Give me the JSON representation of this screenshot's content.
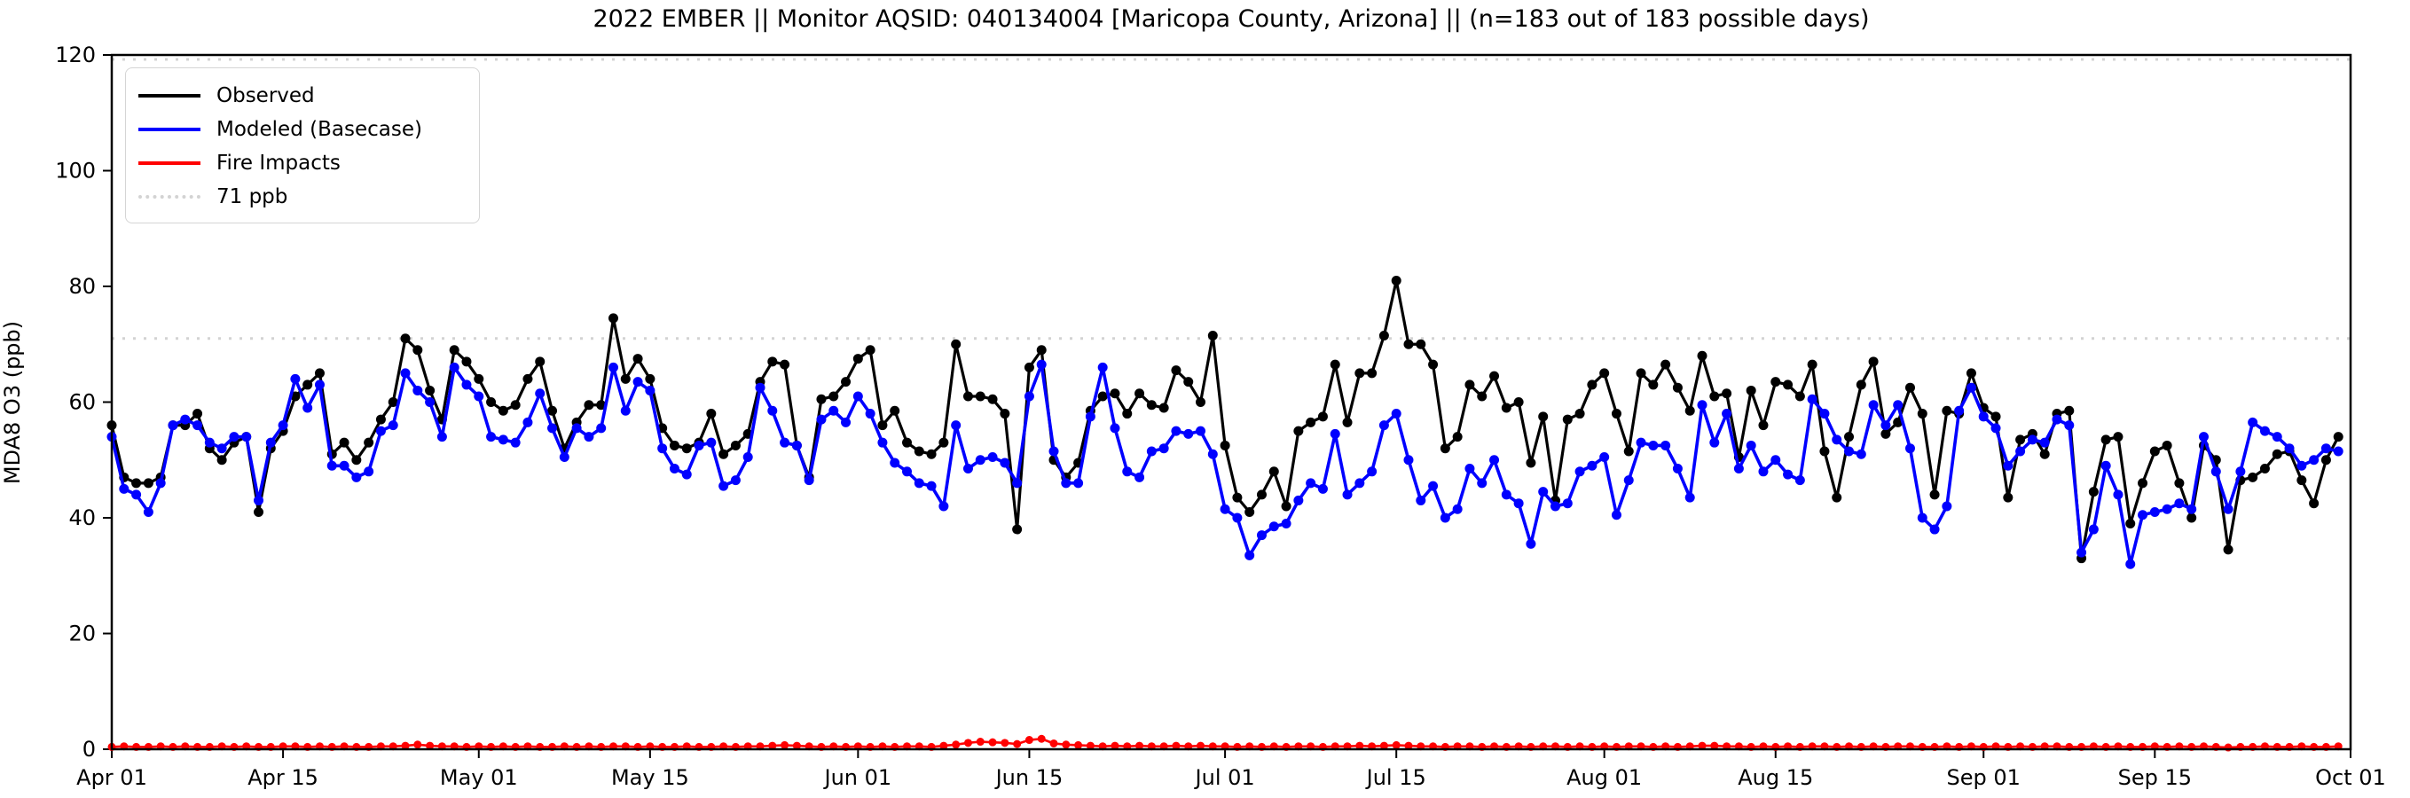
{
  "figure": {
    "background": "#ffffff",
    "frame_color": "#000000"
  },
  "chart_data": {
    "type": "line",
    "title": "2022 EMBER || Monitor AQSID: 040134004 [Maricopa County, Arizona] || (n=183 out of 183 possible days)",
    "ylabel": "MDA8 O3 (ppb)",
    "ylim": [
      0,
      120
    ],
    "y_ticks": [
      0,
      20,
      40,
      60,
      80,
      100,
      120
    ],
    "x_tick_labels": [
      "Apr 01",
      "Apr 15",
      "May 01",
      "May 15",
      "Jun 01",
      "Jun 15",
      "Jul 01",
      "Jul 15",
      "Aug 01",
      "Aug 15",
      "Sep 01",
      "Sep 15",
      "Oct 01"
    ],
    "x_tick_days": [
      0,
      14,
      30,
      44,
      61,
      75,
      91,
      105,
      122,
      136,
      153,
      167,
      183
    ],
    "total_days_axis": 183,
    "n_points": 183,
    "threshold_ppb": 71,
    "threshold_color": "#d3d3d3",
    "grid": false,
    "legend_position": "upper-left",
    "legend": [
      {
        "label": "Observed",
        "color": "#000000",
        "style": "solid"
      },
      {
        "label": "Modeled (Basecase)",
        "color": "#0000ff",
        "style": "solid"
      },
      {
        "label": "Fire Impacts",
        "color": "#ff0000",
        "style": "solid"
      },
      {
        "label": "71 ppb",
        "color": "#d3d3d3",
        "style": "dotted"
      }
    ],
    "series": [
      {
        "name": "Observed",
        "color": "#000000",
        "values": [
          56,
          47,
          46,
          46,
          47,
          56,
          56,
          58,
          52,
          50,
          53,
          54,
          41,
          52,
          55,
          61,
          63,
          65,
          51,
          53,
          50,
          53,
          57,
          60,
          71,
          69,
          62,
          57,
          69,
          67,
          64,
          60,
          58.5,
          59.5,
          64,
          67,
          58.5,
          52,
          56.5,
          59.5,
          59.5,
          74.5,
          64,
          67.5,
          64,
          55.5,
          52.5,
          52,
          53,
          58,
          51,
          52.5,
          54.5,
          63.5,
          67,
          66.5,
          52.5,
          47,
          60.5,
          61,
          63.5,
          67.5,
          69,
          56,
          58.5,
          53,
          51.5,
          51,
          53,
          70,
          61,
          61,
          60.5,
          58,
          38,
          66,
          69,
          50,
          47,
          49.5,
          58.5,
          61,
          61.5,
          58,
          61.5,
          59.5,
          59,
          65.5,
          63.5,
          60,
          71.5,
          52.5,
          43.5,
          41,
          44,
          48,
          42,
          55,
          56.5,
          57.5,
          66.5,
          56.5,
          65,
          65,
          71.5,
          81,
          70,
          70,
          66.5,
          52,
          54,
          63,
          61,
          64.5,
          59,
          60,
          49.5,
          57.5,
          43,
          57,
          58,
          63,
          65,
          58,
          51.5,
          65,
          63,
          66.5,
          62.5,
          58.5,
          68,
          61,
          61.5,
          50.5,
          62,
          56,
          63.5,
          63,
          61,
          66.5,
          51.5,
          43.5,
          54,
          63,
          67,
          54.5,
          56.5,
          62.5,
          58,
          44,
          58.5,
          58,
          65,
          59,
          57.5,
          43.5,
          53.5,
          54.5,
          51,
          58,
          58.5,
          33,
          44.5,
          53.5,
          54,
          39,
          46,
          51.5,
          52.5,
          46,
          40,
          52.5,
          50,
          34.5,
          46.5,
          47,
          48.5,
          51,
          51.5,
          46.5,
          42.5,
          50,
          54
        ]
      },
      {
        "name": "Modeled (Basecase)",
        "color": "#0000ff",
        "values": [
          54,
          45,
          44,
          41,
          46,
          56,
          57,
          56,
          53,
          52,
          54,
          54,
          43,
          53,
          56,
          64,
          59,
          63,
          49,
          49,
          47,
          48,
          55,
          56,
          65,
          62,
          60,
          54,
          66,
          63,
          61,
          54,
          53.5,
          53,
          56.5,
          61.5,
          55.5,
          50.5,
          55.5,
          54,
          55.5,
          66,
          58.5,
          63.5,
          62,
          52,
          48.5,
          47.5,
          52.5,
          53,
          45.5,
          46.5,
          50.5,
          62.5,
          58.5,
          53,
          52.5,
          46.5,
          57,
          58.5,
          56.5,
          61,
          58,
          53,
          49.5,
          48,
          46,
          45.5,
          42,
          56,
          48.5,
          50,
          50.5,
          49.5,
          46,
          61,
          66.5,
          51.5,
          46,
          46,
          57.5,
          66,
          55.5,
          48,
          47,
          51.5,
          52,
          55,
          54.5,
          55,
          51,
          41.5,
          40,
          33.5,
          37,
          38.5,
          39,
          43,
          46,
          45,
          54.5,
          44,
          46,
          48,
          56,
          58,
          50,
          43,
          45.5,
          40,
          41.5,
          48.5,
          46,
          50,
          44,
          42.5,
          35.5,
          44.5,
          42,
          42.5,
          48,
          49,
          50.5,
          40.5,
          46.5,
          53,
          52.5,
          52.5,
          48.5,
          43.5,
          59.5,
          53,
          58,
          48.5,
          52.5,
          48,
          50,
          47.5,
          46.5,
          60.5,
          58,
          53.5,
          51.5,
          51,
          59.5,
          56,
          59.5,
          52,
          40,
          38,
          42,
          58.5,
          62.5,
          57.5,
          55.5,
          49,
          51.5,
          53.5,
          53,
          57,
          56,
          34,
          38,
          49,
          44,
          32,
          40.5,
          41,
          41.5,
          42.5,
          41.5,
          54,
          48,
          41.5,
          48,
          56.5,
          55,
          54,
          52,
          49,
          50,
          52,
          51.5
        ]
      },
      {
        "name": "Fire Impacts",
        "color": "#ff0000",
        "values": [
          0.4,
          0.5,
          0.4,
          0.4,
          0.5,
          0.4,
          0.5,
          0.4,
          0.4,
          0.5,
          0.4,
          0.5,
          0.4,
          0.4,
          0.5,
          0.5,
          0.4,
          0.5,
          0.4,
          0.5,
          0.4,
          0.4,
          0.5,
          0.5,
          0.6,
          0.8,
          0.6,
          0.5,
          0.5,
          0.4,
          0.5,
          0.4,
          0.5,
          0.4,
          0.5,
          0.4,
          0.4,
          0.5,
          0.4,
          0.5,
          0.4,
          0.5,
          0.5,
          0.4,
          0.5,
          0.4,
          0.4,
          0.5,
          0.4,
          0.4,
          0.5,
          0.4,
          0.5,
          0.5,
          0.6,
          0.7,
          0.6,
          0.5,
          0.4,
          0.5,
          0.4,
          0.5,
          0.4,
          0.5,
          0.4,
          0.5,
          0.5,
          0.4,
          0.6,
          0.8,
          1.1,
          1.3,
          1.2,
          1.1,
          0.9,
          1.6,
          1.8,
          1.0,
          0.8,
          0.7,
          0.6,
          0.5,
          0.6,
          0.5,
          0.6,
          0.5,
          0.5,
          0.6,
          0.5,
          0.6,
          0.5,
          0.5,
          0.4,
          0.5,
          0.4,
          0.5,
          0.4,
          0.5,
          0.5,
          0.4,
          0.5,
          0.5,
          0.6,
          0.5,
          0.6,
          0.7,
          0.6,
          0.5,
          0.5,
          0.4,
          0.5,
          0.5,
          0.4,
          0.5,
          0.4,
          0.5,
          0.4,
          0.5,
          0.5,
          0.4,
          0.5,
          0.4,
          0.5,
          0.4,
          0.5,
          0.5,
          0.4,
          0.5,
          0.4,
          0.5,
          0.6,
          0.6,
          0.5,
          0.5,
          0.4,
          0.5,
          0.4,
          0.5,
          0.4,
          0.5,
          0.5,
          0.4,
          0.5,
          0.4,
          0.5,
          0.4,
          0.5,
          0.5,
          0.4,
          0.4,
          0.5,
          0.4,
          0.5,
          0.4,
          0.5,
          0.4,
          0.5,
          0.4,
          0.5,
          0.5,
          0.4,
          0.4,
          0.5,
          0.4,
          0.5,
          0.4,
          0.4,
          0.5,
          0.4,
          0.5,
          0.4,
          0.5,
          0.4,
          0.3,
          0.4,
          0.4,
          0.5,
          0.4,
          0.4,
          0.5,
          0.4,
          0.4,
          0.5
        ]
      }
    ]
  }
}
